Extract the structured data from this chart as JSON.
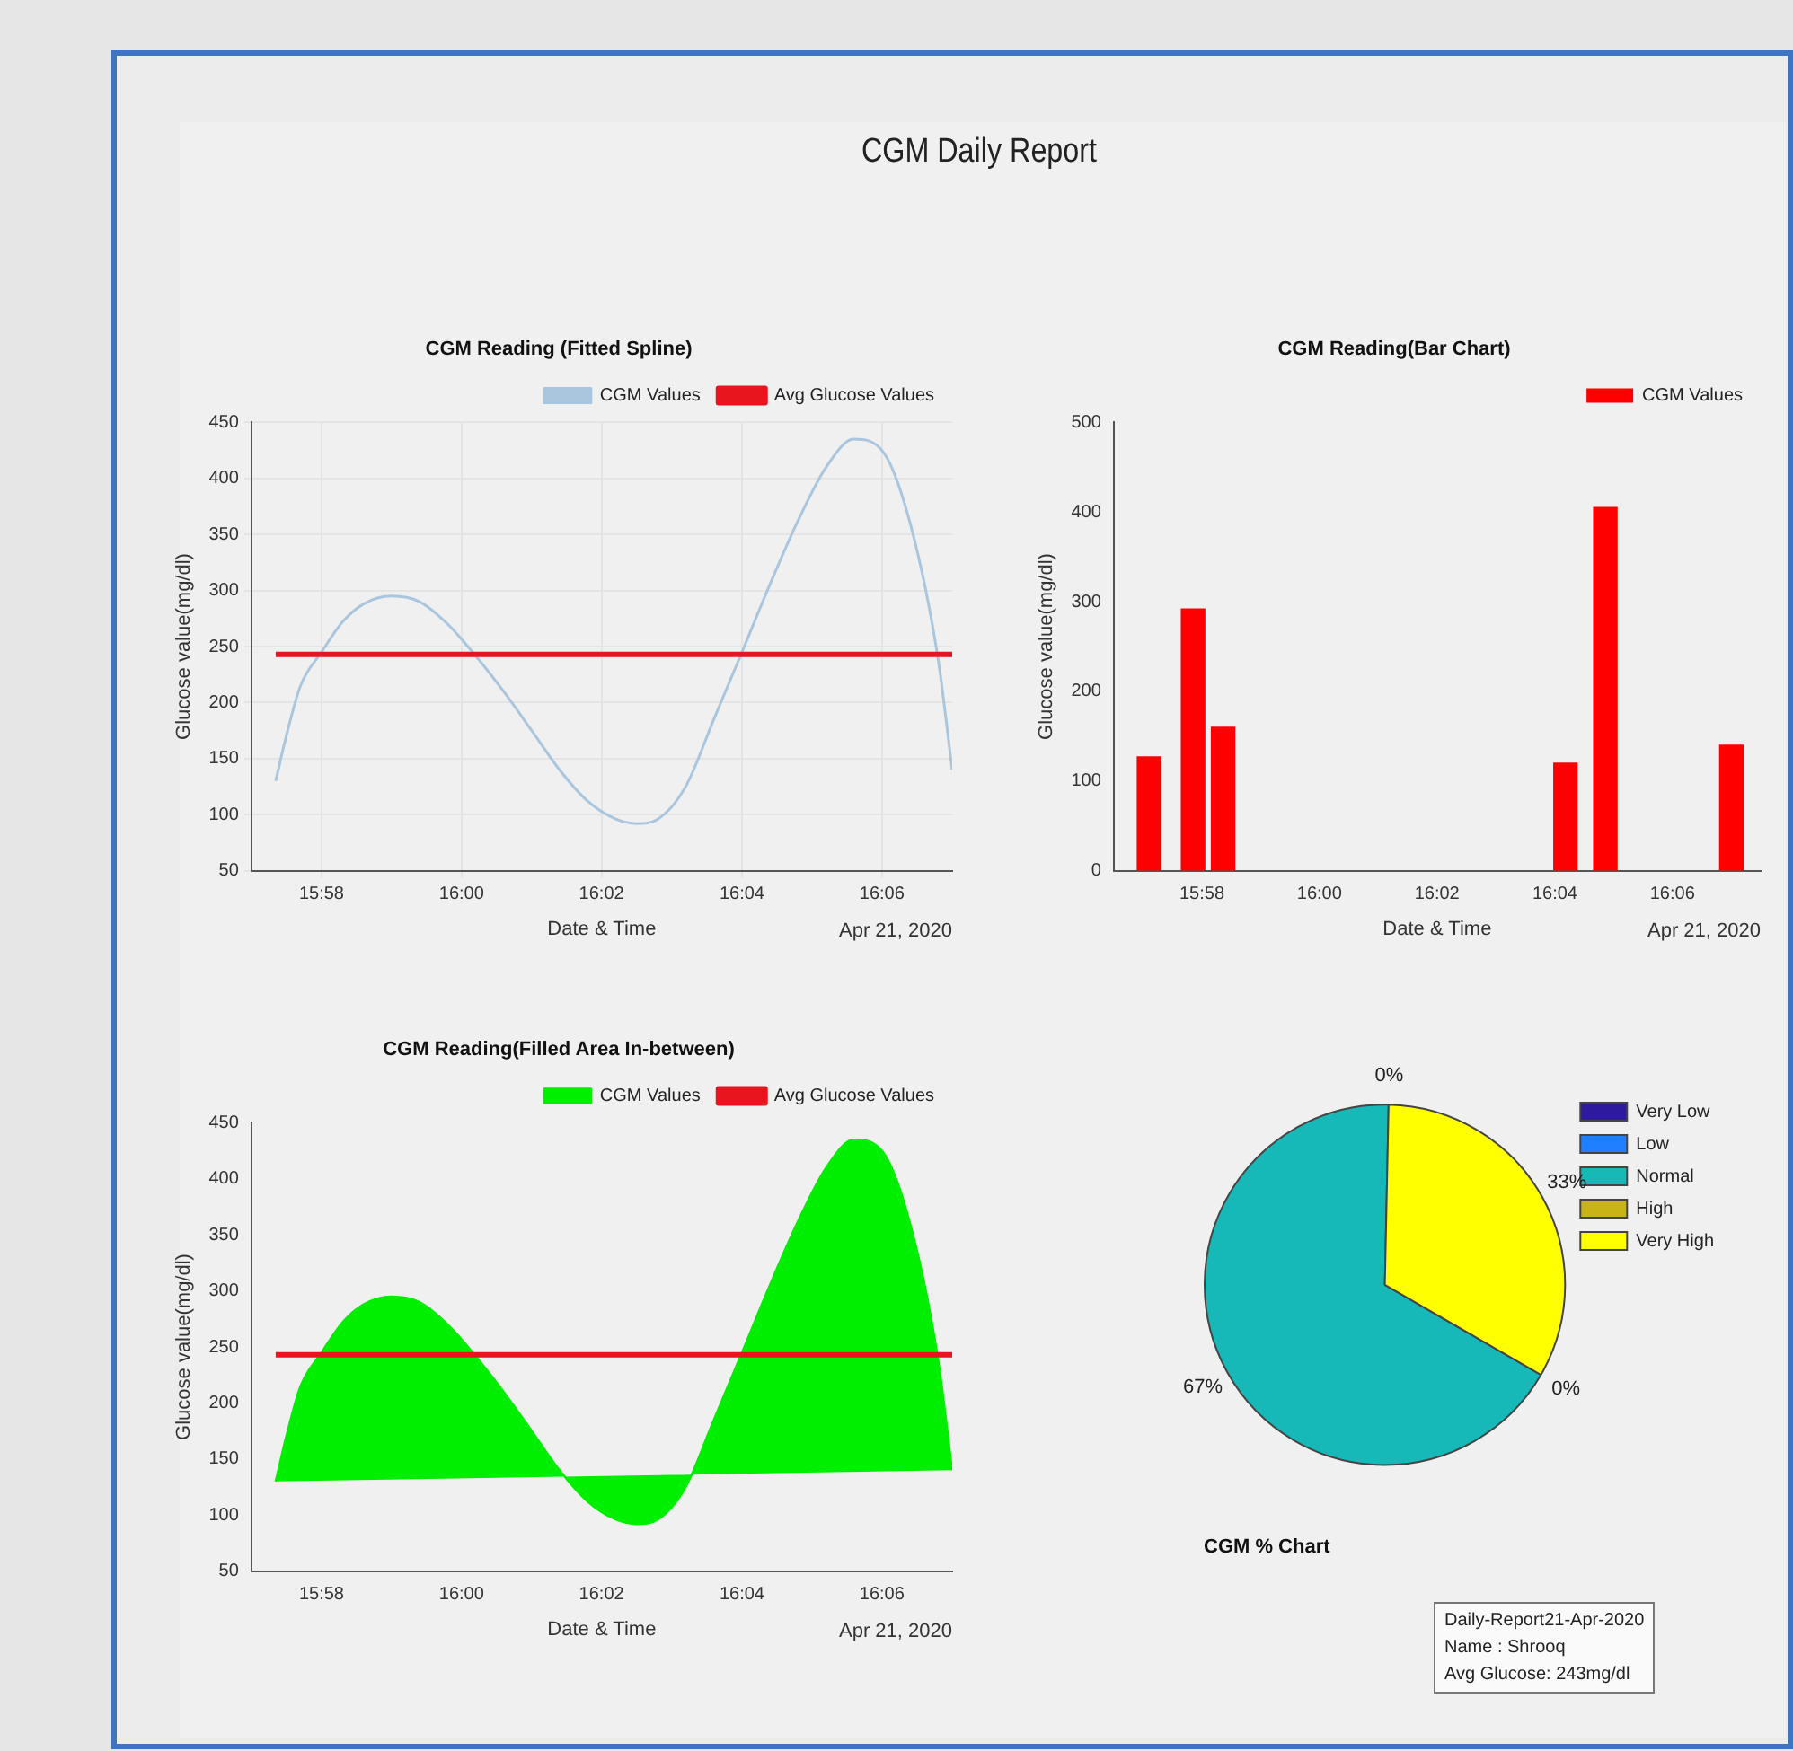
{
  "chart_data": [
    {
      "type": "other",
      "title": "CGM Daily Report"
    },
    {
      "type": "line",
      "title": "CGM Reading (Fitted Spline)",
      "xlabel": "Date & Time",
      "ylabel": "Glucose value(mg/dl)",
      "annotations": [
        "Apr 21, 2020"
      ],
      "xlim": [
        15.95,
        16.1167
      ],
      "xticks": [
        {
          "value": 15.9667,
          "label": "15:58"
        },
        {
          "value": 16,
          "label": "16:00"
        },
        {
          "value": 16.0333,
          "label": "16:02"
        },
        {
          "value": 16.0667,
          "label": "16:04"
        },
        {
          "value": 16.1,
          "label": "16:06"
        }
      ],
      "ylim": [
        50,
        450
      ],
      "yticks": [
        50,
        100,
        150,
        200,
        250,
        300,
        350,
        400,
        450
      ],
      "grid": true,
      "legend": "top right",
      "series": [
        {
          "name": "CGM Values",
          "color": "#a9c6de",
          "x": [
            15.9558,
            15.9583,
            15.9617,
            15.9667,
            15.9717,
            15.9767,
            15.9833,
            15.99,
            15.9967,
            16.0033,
            16.01,
            16.0167,
            16.0233,
            16.03,
            16.0367,
            16.0417,
            16.0467,
            16.0533,
            16.06,
            16.0667,
            16.0733,
            16.08,
            16.0867,
            16.0933,
            16.1,
            16.1067,
            16.1133,
            16.1167
          ],
          "values": [
            130,
            170,
            215,
            245,
            272,
            288,
            295,
            290,
            270,
            242,
            210,
            175,
            140,
            112,
            96,
            92,
            96,
            125,
            185,
            245,
            305,
            362,
            410,
            435,
            425,
            360,
            240,
            140
          ]
        },
        {
          "name": "Avg Glucose Values",
          "color": "#e8141e",
          "x": [
            15.9558,
            16.1167
          ],
          "values": [
            243,
            243
          ]
        }
      ]
    },
    {
      "type": "bar",
      "title": "CGM Reading(Bar Chart)",
      "xlabel": "Date & Time",
      "ylabel": "Glucose value(mg/dl)",
      "annotations": [
        "Apr 21, 2020"
      ],
      "xlim": [
        15.9417,
        16.125
      ],
      "xticks": [
        {
          "value": 15.9667,
          "label": "15:58"
        },
        {
          "value": 16,
          "label": "16:00"
        },
        {
          "value": 16.0333,
          "label": "16:02"
        },
        {
          "value": 16.0667,
          "label": "16:04"
        },
        {
          "value": 16.1,
          "label": "16:06"
        }
      ],
      "ylim": [
        0,
        500
      ],
      "yticks": [
        0,
        100,
        200,
        300,
        400,
        500
      ],
      "legend": "top right",
      "series": [
        {
          "name": "CGM Values",
          "color": "#ff0000",
          "x": [
            15.9517,
            15.9642,
            15.9727,
            16.0697,
            16.081,
            16.1167
          ],
          "values": [
            127,
            292,
            160,
            120,
            405,
            140
          ]
        }
      ]
    },
    {
      "type": "area",
      "title": "CGM Reading(Filled Area In-between)",
      "xlabel": "Date & Time",
      "ylabel": "Glucose value(mg/dl)",
      "annotations": [
        "Apr 21, 2020"
      ],
      "xlim": [
        15.95,
        16.1167
      ],
      "xticks": [
        {
          "value": 15.9667,
          "label": "15:58"
        },
        {
          "value": 16,
          "label": "16:00"
        },
        {
          "value": 16.0333,
          "label": "16:02"
        },
        {
          "value": 16.0667,
          "label": "16:04"
        },
        {
          "value": 16.1,
          "label": "16:06"
        }
      ],
      "ylim": [
        50,
        450
      ],
      "yticks": [
        50,
        100,
        150,
        200,
        250,
        300,
        350,
        400,
        450
      ],
      "legend": "top right",
      "series": [
        {
          "name": "CGM Values",
          "color": "#00ee00",
          "x": [
            15.9558,
            15.9583,
            15.9617,
            15.9667,
            15.9717,
            15.9767,
            15.9833,
            15.99,
            15.9967,
            16.0033,
            16.01,
            16.0167,
            16.0233,
            16.03,
            16.0367,
            16.0417,
            16.0467,
            16.0533,
            16.06,
            16.0667,
            16.0733,
            16.08,
            16.0867,
            16.0933,
            16.1,
            16.1067,
            16.1133,
            16.1167
          ],
          "values": [
            130,
            170,
            215,
            245,
            272,
            288,
            295,
            290,
            270,
            242,
            210,
            175,
            140,
            112,
            96,
            92,
            96,
            125,
            185,
            245,
            305,
            362,
            410,
            435,
            425,
            360,
            240,
            140
          ]
        },
        {
          "name": "Avg Glucose Values",
          "type": "line",
          "color": "#e8141e",
          "x": [
            15.9558,
            16.1167
          ],
          "values": [
            243,
            243
          ]
        }
      ]
    },
    {
      "type": "pie",
      "title": "CGM % Chart",
      "categories": [
        "Very Low",
        "Low",
        "Normal",
        "High",
        "Very High"
      ],
      "values": [
        0,
        0,
        67,
        0,
        33
      ],
      "colors": [
        "#2e1a9e",
        "#1e7fff",
        "#16b8b8",
        "#c8b414",
        "#ffff00"
      ],
      "value_labels": [
        "0%",
        null,
        "67%",
        "0%",
        "33%"
      ],
      "legend": "top right",
      "annotations": [
        "Daily-Report21-Apr-2020",
        "Name : Shrooq",
        "Avg Glucose: 243mg/dl"
      ]
    }
  ]
}
